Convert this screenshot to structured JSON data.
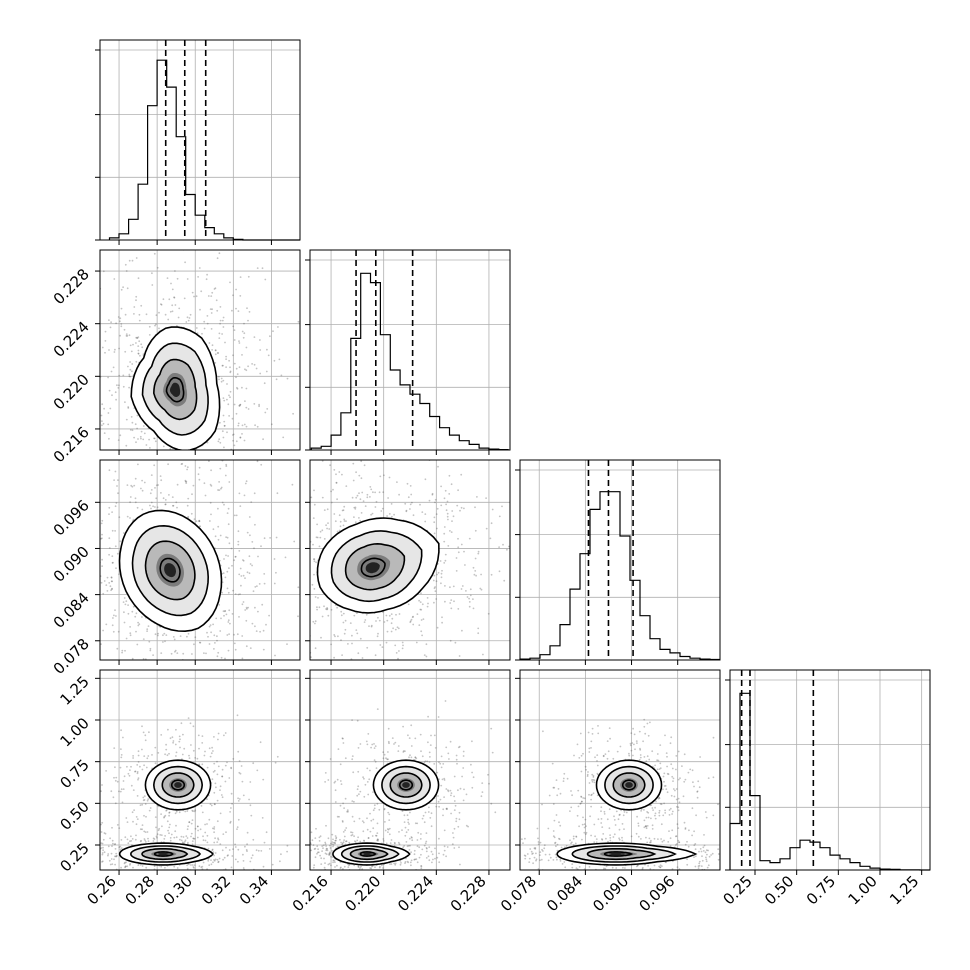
{
  "chart_data": {
    "type": "corner",
    "parameters": [
      {
        "lim": [
          0.25,
          0.355
        ],
        "ticks": [
          "0.26",
          "0.28",
          "0.30",
          "0.32",
          "0.34"
        ],
        "quantiles": [
          0.2845,
          0.2945,
          0.3055
        ],
        "center": 0.2945
      },
      {
        "lim": [
          0.2144,
          0.2296
        ],
        "ticks": [
          "0.216",
          "0.220",
          "0.224",
          "0.228"
        ],
        "quantiles": [
          0.2179,
          0.2194,
          0.2222
        ],
        "center": 0.219
      },
      {
        "lim": [
          0.0755,
          0.1015
        ],
        "ticks": [
          "0.078",
          "0.084",
          "0.090",
          "0.096"
        ],
        "quantiles": [
          0.0844,
          0.087,
          0.0902
        ],
        "center": 0.0873
      },
      {
        "lim": [
          0.1,
          1.3
        ],
        "ticks": [
          "0.25",
          "0.50",
          "0.75",
          "1.00",
          "1.25"
        ],
        "quantiles": [
          0.17,
          0.22,
          0.6
        ],
        "center": 0.6
      }
    ],
    "histograms": [
      {
        "param": 0,
        "bin_start": 0.255,
        "bin_width": 0.005,
        "values": [
          1,
          3,
          10,
          27,
          65,
          87,
          74,
          50,
          22,
          12,
          6,
          3,
          1,
          0.3,
          0,
          0,
          0,
          0,
          0,
          0
        ]
      },
      {
        "param": 1,
        "bin_start": 0.2145,
        "bin_width": 0.00075,
        "values": [
          1,
          2,
          8,
          20,
          60,
          95,
          90,
          62,
          43,
          35,
          30,
          25,
          18,
          12,
          8,
          5,
          3,
          1,
          0.5,
          0.2
        ]
      },
      {
        "param": 2,
        "bin_start": 0.0755,
        "bin_width": 0.0013,
        "values": [
          0.5,
          1,
          3,
          8,
          20,
          40,
          60,
          85,
          95,
          95,
          70,
          45,
          25,
          12,
          6,
          4,
          2,
          1,
          0.5,
          0.3
        ]
      },
      {
        "param": 3,
        "bin_start": 0.1,
        "bin_width": 0.06,
        "values": [
          25,
          95,
          40,
          5,
          4,
          6,
          12,
          16,
          15,
          12,
          8,
          6,
          4,
          2,
          1,
          0.5,
          0.3,
          0.1,
          0.1,
          0
        ]
      }
    ],
    "hist_max": [
      90,
      100,
      105,
      100
    ],
    "grid": true
  }
}
